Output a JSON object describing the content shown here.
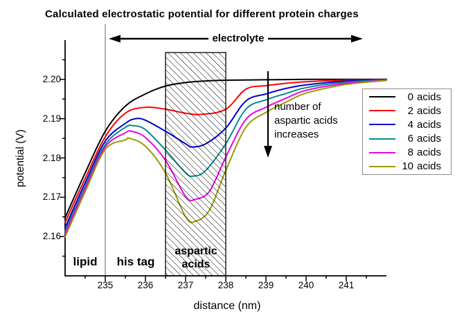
{
  "title": "Calculated electrostatic potential for different protein charges",
  "annotations": {
    "electrolyte": "electrolyte",
    "increase_note": "number of\naspartic acids\nincreases",
    "region_lipid": "lipid",
    "region_his_tag": "his tag",
    "region_aspartic": "aspartic\nacids"
  },
  "chart_data": {
    "type": "line",
    "title": "Calculated electrostatic potential for different protein charges",
    "xlabel": "distance (nm)",
    "ylabel": "potential (V)",
    "xlim": [
      234,
      242
    ],
    "ylim": [
      2.15,
      2.21
    ],
    "x_tick_values": [
      235,
      236,
      237,
      238,
      239,
      240,
      241
    ],
    "x_minor_tick_step": 0.5,
    "y_tick_values": [
      2.16,
      2.17,
      2.18,
      2.19,
      2.2
    ],
    "y_minor_tick_step": 0.005,
    "grid": false,
    "legend_position": "right",
    "vline_x": 235,
    "hatch_region": {
      "x0": 236.5,
      "x1": 238.0
    },
    "region_boundaries_nm": {
      "lipid": [
        234,
        235
      ],
      "his_tag": [
        235,
        236.5
      ],
      "aspartic_acids": [
        236.5,
        238
      ]
    },
    "colors": {
      "axis": "#000000",
      "vline": "#b0b0b0",
      "series": [
        "#000000",
        "#ff0000",
        "#0000cc",
        "#008b8b",
        "#e800e8",
        "#9c9c00"
      ]
    },
    "series": [
      {
        "name": "0 acids",
        "color": "#000000",
        "points": [
          [
            234,
            2.1648
          ],
          [
            234.5,
            2.1762
          ],
          [
            235,
            2.1868
          ],
          [
            235.5,
            2.1932
          ],
          [
            236,
            2.1963
          ],
          [
            236.5,
            2.1983
          ],
          [
            237,
            2.1992
          ],
          [
            237.5,
            2.1996
          ],
          [
            238,
            2.1998
          ],
          [
            239,
            2.1999
          ],
          [
            240,
            2.2
          ],
          [
            241,
            2.2
          ],
          [
            242,
            2.2
          ]
        ]
      },
      {
        "name": "2 acids",
        "color": "#ff0000",
        "points": [
          [
            234,
            2.1636
          ],
          [
            234.5,
            2.1748
          ],
          [
            235,
            2.1854
          ],
          [
            235.5,
            2.1914
          ],
          [
            236,
            2.1929
          ],
          [
            236.5,
            2.1924
          ],
          [
            237,
            2.1914
          ],
          [
            237.4,
            2.1911
          ],
          [
            238,
            2.1924
          ],
          [
            238.5,
            2.1975
          ],
          [
            239,
            2.1984
          ],
          [
            239.5,
            2.199
          ],
          [
            240,
            2.1994
          ],
          [
            241,
            2.1998
          ],
          [
            242,
            2.2
          ]
        ]
      },
      {
        "name": "4 acids",
        "color": "#0000cc",
        "points": [
          [
            234,
            2.1623
          ],
          [
            234.5,
            2.1737
          ],
          [
            235,
            2.1843
          ],
          [
            235.5,
            2.1888
          ],
          [
            235.75,
            2.19
          ],
          [
            236,
            2.1896
          ],
          [
            236.5,
            2.1868
          ],
          [
            237,
            2.1836
          ],
          [
            237.15,
            2.1828
          ],
          [
            237.5,
            2.1836
          ],
          [
            238,
            2.1876
          ],
          [
            238.5,
            2.1945
          ],
          [
            239,
            2.1963
          ],
          [
            239.5,
            2.1977
          ],
          [
            240,
            2.1986
          ],
          [
            241,
            2.1996
          ],
          [
            242,
            2.2
          ]
        ]
      },
      {
        "name": "6 acids",
        "color": "#008b8b",
        "points": [
          [
            234,
            2.1614
          ],
          [
            234.5,
            2.173
          ],
          [
            235,
            2.1834
          ],
          [
            235.5,
            2.1878
          ],
          [
            235.7,
            2.1882
          ],
          [
            236,
            2.1872
          ],
          [
            236.5,
            2.182
          ],
          [
            237,
            2.1762
          ],
          [
            237.2,
            2.1754
          ],
          [
            237.5,
            2.1768
          ],
          [
            238,
            2.1836
          ],
          [
            238.5,
            2.1924
          ],
          [
            239,
            2.1948
          ],
          [
            239.5,
            2.1964
          ],
          [
            240,
            2.1979
          ],
          [
            241,
            2.1993
          ],
          [
            242,
            2.1999
          ]
        ]
      },
      {
        "name": "8 acids",
        "color": "#e800e8",
        "points": [
          [
            234,
            2.1607
          ],
          [
            234.5,
            2.1722
          ],
          [
            235,
            2.1828
          ],
          [
            235.5,
            2.1864
          ],
          [
            235.65,
            2.1868
          ],
          [
            236,
            2.1852
          ],
          [
            236.5,
            2.1794
          ],
          [
            237,
            2.1702
          ],
          [
            237.25,
            2.1695
          ],
          [
            237.6,
            2.1716
          ],
          [
            238,
            2.1802
          ],
          [
            238.5,
            2.1898
          ],
          [
            239,
            2.1929
          ],
          [
            239.5,
            2.1952
          ],
          [
            240,
            2.1972
          ],
          [
            241,
            2.199
          ],
          [
            242,
            2.1998
          ]
        ]
      },
      {
        "name": "10 acids",
        "color": "#9c9c00",
        "points": [
          [
            234,
            2.1599
          ],
          [
            234.5,
            2.1714
          ],
          [
            235,
            2.1822
          ],
          [
            235.5,
            2.1846
          ],
          [
            235.6,
            2.185
          ],
          [
            236,
            2.183
          ],
          [
            236.5,
            2.1762
          ],
          [
            237,
            2.165
          ],
          [
            237.25,
            2.1639
          ],
          [
            237.6,
            2.1668
          ],
          [
            238,
            2.1768
          ],
          [
            238.5,
            2.1878
          ],
          [
            239,
            2.1916
          ],
          [
            239.5,
            2.1942
          ],
          [
            240,
            2.1965
          ],
          [
            241,
            2.1987
          ],
          [
            242,
            2.1997
          ]
        ]
      }
    ]
  }
}
